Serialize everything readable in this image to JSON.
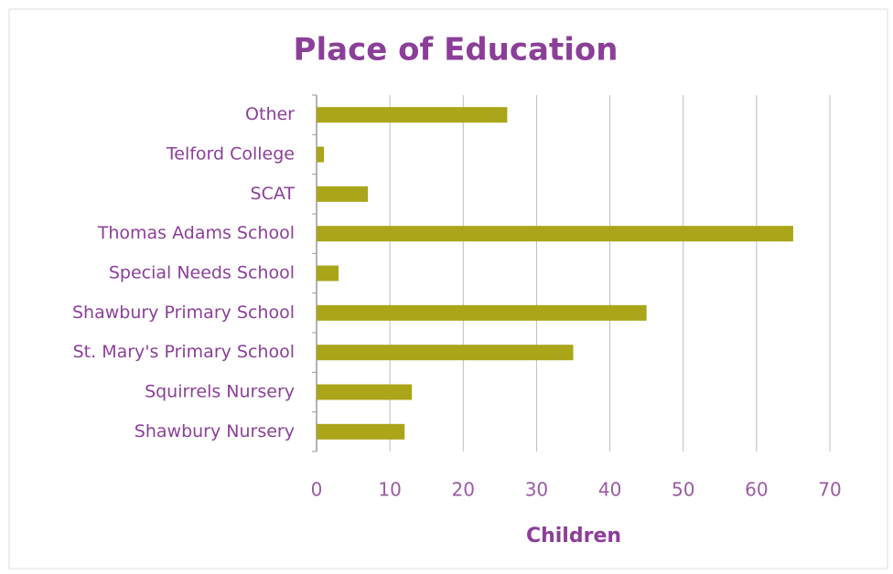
{
  "chart_data": {
    "type": "bar",
    "orientation": "horizontal",
    "title": "Place of Education",
    "x_label": "Children",
    "categories": [
      "Other",
      "Telford College",
      "SCAT",
      "Thomas Adams School",
      "Special Needs School",
      "Shawbury Primary School",
      "St. Mary's Primary School",
      "Squirrels Nursery",
      "Shawbury Nursery"
    ],
    "values": [
      26,
      1,
      7,
      65,
      3,
      45,
      35,
      13,
      12
    ],
    "color": "#aaa519",
    "xlim": [
      0,
      70
    ],
    "xticks": [
      0,
      10,
      20,
      30,
      40,
      50,
      60,
      70
    ],
    "grid": true
  }
}
